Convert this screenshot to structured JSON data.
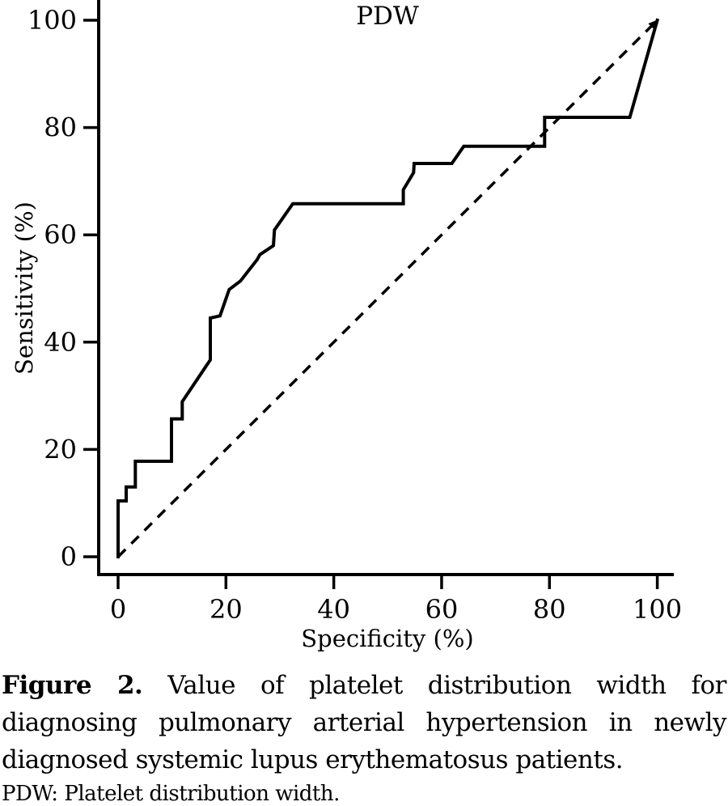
{
  "chart_data": {
    "type": "line",
    "subtype": "ROC curve",
    "title": "PDW",
    "xlabel": "Specificity (%)",
    "ylabel": "Sensitivity (%)",
    "xlim": [
      0,
      100
    ],
    "ylim": [
      0,
      100
    ],
    "x_ticks": [
      0,
      20,
      40,
      60,
      80,
      100
    ],
    "y_ticks": [
      0,
      20,
      40,
      60,
      80,
      100
    ],
    "grid": false,
    "legend": "none",
    "series": [
      {
        "name": "PDW ROC curve",
        "style": "solid",
        "points": [
          [
            0,
            0
          ],
          [
            0,
            10.4
          ],
          [
            1.5,
            10.4
          ],
          [
            1.5,
            13
          ],
          [
            3.2,
            13
          ],
          [
            3.2,
            17.8
          ],
          [
            9.9,
            17.8
          ],
          [
            9.9,
            25.7
          ],
          [
            11.9,
            25.7
          ],
          [
            11.9,
            28.9
          ],
          [
            17.1,
            36.7
          ],
          [
            17.1,
            44.5
          ],
          [
            18.9,
            44.9
          ],
          [
            20.6,
            49.8
          ],
          [
            22.7,
            51.4
          ],
          [
            25.8,
            55.4
          ],
          [
            26.3,
            56.3
          ],
          [
            28.8,
            58
          ],
          [
            29,
            60.9
          ],
          [
            32.4,
            65.8
          ],
          [
            52.9,
            65.8
          ],
          [
            52.9,
            68.4
          ],
          [
            54.8,
            71.6
          ],
          [
            54.9,
            73.3
          ],
          [
            61.9,
            73.3
          ],
          [
            64.1,
            76.5
          ],
          [
            79.1,
            76.5
          ],
          [
            79.1,
            81.9
          ],
          [
            94.9,
            81.9
          ],
          [
            100,
            100
          ]
        ]
      },
      {
        "name": "Reference diagonal (chance line)",
        "style": "dashed-with-arrowhead",
        "points": [
          [
            0,
            0
          ],
          [
            100,
            100
          ]
        ]
      }
    ]
  },
  "caption": {
    "label": "Figure 2.",
    "lines": [
      "Value of platelet distribution width for",
      "diagnosing pulmonary arterial hypertension in newly",
      "diagnosed systemic lupus erythematosus patients."
    ],
    "full_text": "Figure 2. Value of platelet distribution width for diagnosing pulmonary arterial hypertension in newly diagnosed systemic lupus erythematosus patients.",
    "footnote": "PDW: Platelet distribution width."
  },
  "colors": {
    "line": "#000000",
    "background": "#ffffff"
  }
}
